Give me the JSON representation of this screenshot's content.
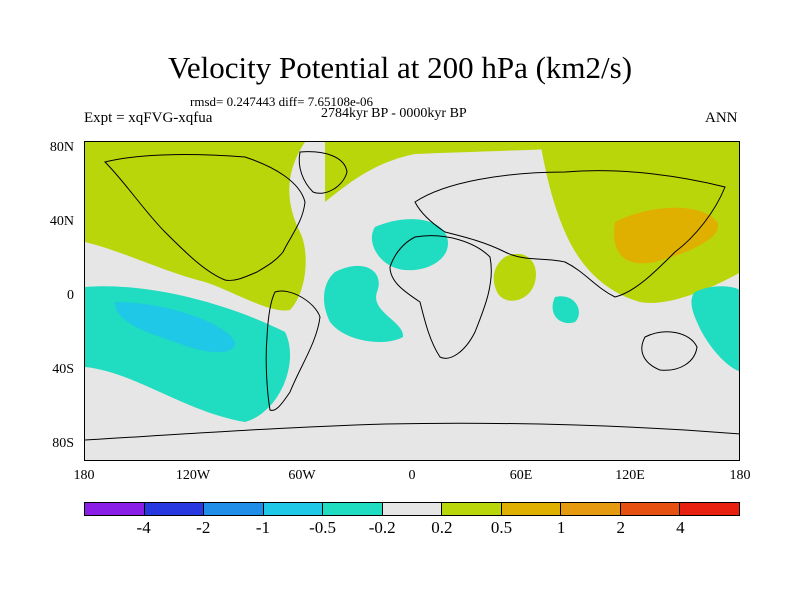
{
  "title": "Velocity Potential at 200 hPa (km2/s)",
  "stats": "rmsd= 0.247443 diff= 7.65108e-06",
  "period": "2784kyr BP - 0000kyr BP",
  "experiment": "Expt = xqFVG-xqfua",
  "season": "ANN",
  "axes": {
    "lat_ticks": [
      "80N",
      "40N",
      "0",
      "40S",
      "80S"
    ],
    "lon_ticks": [
      "180",
      "120W",
      "60W",
      "0",
      "60E",
      "120E",
      "180"
    ]
  },
  "colorbar": {
    "colors": [
      "#8b1ee6",
      "#2838e0",
      "#1e8ee8",
      "#1ec8e6",
      "#20dcc0",
      "#e6e6e6",
      "#b9d60a",
      "#e0b000",
      "#e69a10",
      "#e65010",
      "#e82010"
    ],
    "labels": [
      "-4",
      "-2",
      "-1",
      "-0.5",
      "-0.2",
      "0.2",
      "0.5",
      "1",
      "2",
      "4"
    ]
  }
}
